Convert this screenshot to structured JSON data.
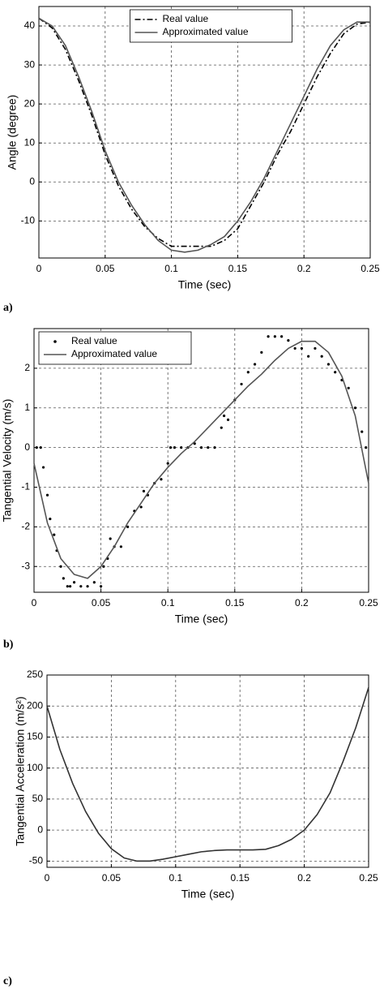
{
  "chart_data": [
    {
      "type": "line",
      "label": "a)",
      "xlabel": "Time (sec)",
      "ylabel": "Angle (degree)",
      "xlim": [
        0,
        0.25
      ],
      "xticks": [
        0,
        0.05,
        0.1,
        0.15,
        0.2,
        0.25
      ],
      "ylim": [
        -19.5,
        45
      ],
      "yticks": [
        -10,
        0,
        10,
        20,
        30,
        40
      ],
      "grid": true,
      "legend": "upper center",
      "x": [
        0,
        0.01,
        0.02,
        0.03,
        0.04,
        0.05,
        0.06,
        0.07,
        0.08,
        0.09,
        0.1,
        0.11,
        0.12,
        0.13,
        0.14,
        0.15,
        0.16,
        0.17,
        0.18,
        0.19,
        0.2,
        0.21,
        0.22,
        0.23,
        0.24,
        0.25
      ],
      "series": [
        {
          "name": "Real value",
          "color": "#000000",
          "mode": "lines",
          "dash": "dashdot",
          "values": [
            42,
            39.5,
            34,
            26,
            17,
            7,
            -1,
            -7,
            -11.5,
            -14.5,
            -16.5,
            -16.5,
            -16.5,
            -16.5,
            -15,
            -12,
            -6,
            0,
            7,
            13,
            20,
            27,
            33,
            38,
            40.5,
            41
          ]
        },
        {
          "name": "Approximated value",
          "color": "#555555",
          "mode": "lines",
          "dash": "solid",
          "values": [
            42,
            40,
            35,
            27,
            18,
            8,
            0,
            -6,
            -11,
            -15,
            -17.5,
            -18,
            -17.5,
            -16,
            -14,
            -10,
            -5,
            1,
            8,
            15,
            22,
            29,
            35,
            39,
            41,
            41
          ]
        }
      ]
    },
    {
      "type": "line",
      "label": "b)",
      "xlabel": "Time (sec)",
      "ylabel": "Tangential Velocity (m/s)",
      "xlim": [
        0,
        0.25
      ],
      "xticks": [
        0,
        0.05,
        0.1,
        0.15,
        0.2,
        0.25
      ],
      "ylim": [
        -3.65,
        3
      ],
      "yticks": [
        -3,
        -2,
        -1,
        0,
        1,
        2
      ],
      "grid": true,
      "legend": "upper left",
      "series": [
        {
          "name": "Real value",
          "color": "#000000",
          "mode": "markers",
          "x": [
            0.002,
            0.005,
            0.007,
            0.01,
            0.012,
            0.015,
            0.017,
            0.02,
            0.022,
            0.025,
            0.027,
            0.03,
            0.035,
            0.04,
            0.045,
            0.05,
            0.052,
            0.055,
            0.057,
            0.06,
            0.065,
            0.07,
            0.075,
            0.08,
            0.082,
            0.085,
            0.09,
            0.095,
            0.1,
            0.102,
            0.105,
            0.11,
            0.115,
            0.12,
            0.125,
            0.13,
            0.135,
            0.14,
            0.142,
            0.145,
            0.15,
            0.155,
            0.16,
            0.165,
            0.17,
            0.175,
            0.18,
            0.185,
            0.19,
            0.195,
            0.2,
            0.205,
            0.21,
            0.215,
            0.22,
            0.225,
            0.23,
            0.235,
            0.24,
            0.245,
            0.248
          ],
          "values": [
            0,
            0,
            -0.5,
            -1.2,
            -1.8,
            -2.2,
            -2.6,
            -3,
            -3.3,
            -3.5,
            -3.5,
            -3.4,
            -3.5,
            -3.5,
            -3.4,
            -3.5,
            -3,
            -2.8,
            -2.3,
            -2.5,
            -2.5,
            -2,
            -1.6,
            -1.5,
            -1.1,
            -1.2,
            -0.9,
            -0.8,
            -0.4,
            0,
            0,
            0,
            0,
            0.1,
            0,
            0,
            0,
            0.5,
            0.8,
            0.7,
            1.2,
            1.6,
            1.9,
            2.1,
            2.4,
            2.8,
            2.8,
            2.8,
            2.7,
            2.5,
            2.5,
            2.3,
            2.5,
            2.3,
            2.1,
            1.9,
            1.7,
            1.5,
            1,
            0.4,
            0
          ]
        },
        {
          "name": "Approximated value",
          "color": "#555555",
          "mode": "lines",
          "dash": "solid",
          "x": [
            0,
            0.01,
            0.02,
            0.03,
            0.04,
            0.05,
            0.06,
            0.07,
            0.08,
            0.09,
            0.1,
            0.11,
            0.12,
            0.13,
            0.14,
            0.15,
            0.16,
            0.17,
            0.18,
            0.19,
            0.2,
            0.21,
            0.22,
            0.23,
            0.24,
            0.25
          ],
          "values": [
            -0.4,
            -1.9,
            -2.8,
            -3.2,
            -3.3,
            -3,
            -2.5,
            -1.9,
            -1.4,
            -0.9,
            -0.5,
            -0.15,
            0.15,
            0.5,
            0.85,
            1.2,
            1.55,
            1.85,
            2.2,
            2.5,
            2.68,
            2.68,
            2.4,
            1.8,
            0.8,
            -0.9
          ]
        }
      ]
    },
    {
      "type": "line",
      "label": "c)",
      "xlabel": "Time (sec)",
      "ylabel": "Tangential Acceleration (m/s²)",
      "xlim": [
        0,
        0.25
      ],
      "xticks": [
        0,
        0.05,
        0.1,
        0.15,
        0.2,
        0.25
      ],
      "ylim": [
        -60,
        250
      ],
      "yticks": [
        -50,
        0,
        50,
        100,
        150,
        200,
        250
      ],
      "grid": true,
      "color": "#333333",
      "x": [
        0,
        0.01,
        0.02,
        0.03,
        0.04,
        0.05,
        0.06,
        0.07,
        0.08,
        0.09,
        0.1,
        0.11,
        0.12,
        0.13,
        0.14,
        0.15,
        0.16,
        0.17,
        0.18,
        0.19,
        0.2,
        0.21,
        0.22,
        0.23,
        0.24,
        0.25
      ],
      "values": [
        200,
        130,
        75,
        30,
        -5,
        -30,
        -45,
        -50,
        -50,
        -47,
        -43,
        -39,
        -35,
        -33,
        -32,
        -32,
        -32,
        -31,
        -25,
        -15,
        0,
        25,
        60,
        110,
        165,
        230
      ]
    }
  ]
}
